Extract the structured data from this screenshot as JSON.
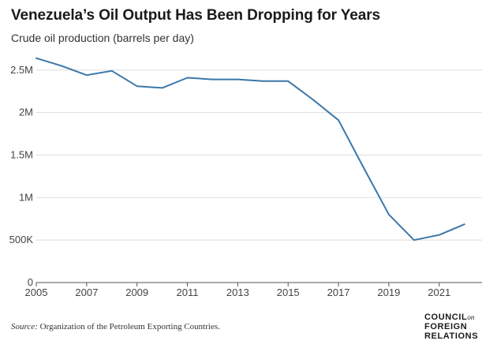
{
  "chart_data": {
    "type": "line",
    "title": "Venezuela’s Oil Output Has Been Dropping for Years",
    "subtitle": "Crude oil production (barrels per day)",
    "xlabel": "",
    "ylabel": "",
    "x": [
      2005,
      2006,
      2007,
      2008,
      2009,
      2010,
      2011,
      2012,
      2013,
      2014,
      2015,
      2016,
      2017,
      2018,
      2019,
      2020,
      2021,
      2022
    ],
    "series": [
      {
        "values": [
          2640000,
          2550000,
          2440000,
          2490000,
          2310000,
          2290000,
          2410000,
          2390000,
          2390000,
          2370000,
          2370000,
          2150000,
          1910000,
          1350000,
          800000,
          500000,
          560000,
          685000
        ]
      }
    ],
    "xlim": [
      2005,
      2022.7
    ],
    "ylim": [
      0,
      2600000
    ],
    "x_ticks": [
      2005,
      2007,
      2009,
      2011,
      2013,
      2015,
      2017,
      2019,
      2021
    ],
    "x_tick_labels": [
      "2005",
      "2007",
      "2009",
      "2011",
      "2013",
      "2015",
      "2017",
      "2019",
      "2021"
    ],
    "y_ticks": [
      0,
      500000,
      1000000,
      1500000,
      2000000,
      2500000
    ],
    "y_tick_labels": [
      "0",
      "500K",
      "1M",
      "1.5M",
      "2M",
      "2.5M"
    ],
    "grid": true,
    "line_color": "#3b77a8",
    "grid_color": "#dddddd",
    "axis_color": "#555555"
  },
  "source": {
    "label": "Source:",
    "text": "Organization of the Petroleum Exporting Countries."
  },
  "logo": {
    "line1": "COUNCIL",
    "line1_suffix": "on",
    "line2": "FOREIGN",
    "line3": "RELATIONS"
  }
}
